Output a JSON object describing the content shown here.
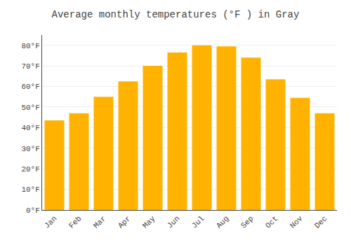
{
  "chart_data": {
    "type": "bar",
    "title": "Average monthly temperatures (°F ) in Gray",
    "categories": [
      "Jan",
      "Feb",
      "Mar",
      "Apr",
      "May",
      "Jun",
      "Jul",
      "Aug",
      "Sep",
      "Oct",
      "Nov",
      "Dec"
    ],
    "values": [
      43.5,
      47.0,
      55.0,
      62.5,
      70.0,
      76.5,
      80.0,
      79.5,
      74.0,
      63.5,
      54.5,
      47.0
    ],
    "color": "#FFB300",
    "ylim": [
      0,
      85
    ],
    "yticks": [
      {
        "value": 0,
        "label": "0°F"
      },
      {
        "value": 10,
        "label": "10°F"
      },
      {
        "value": 20,
        "label": "20°F"
      },
      {
        "value": 30,
        "label": "30°F"
      },
      {
        "value": 40,
        "label": "40°F"
      },
      {
        "value": 50,
        "label": "50°F"
      },
      {
        "value": 60,
        "label": "60°F"
      },
      {
        "value": 70,
        "label": "70°F"
      },
      {
        "value": 80,
        "label": "80°F"
      }
    ],
    "grid": true
  }
}
